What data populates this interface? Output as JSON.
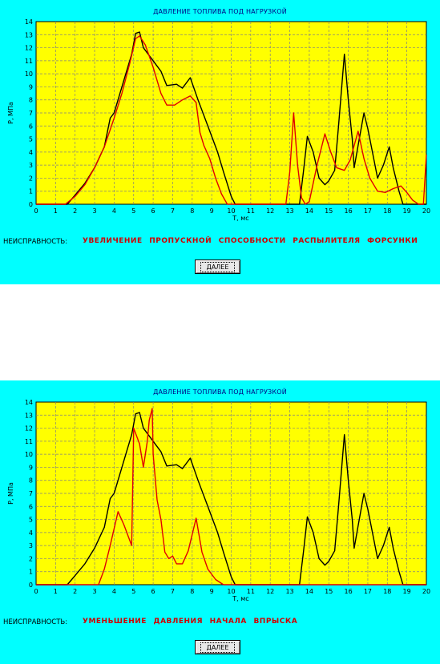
{
  "panels": [
    {
      "title": "ДАВЛЕНИЕ ТОПЛИВА ПОД НАГРУЗКОЙ",
      "fault_label": "НЕИСПРАВНОСТЬ:",
      "fault_value": "УВЕЛИЧЕНИЕ ПРОПУСКНОЙ СПОСОБНОСТИ РАСПЫЛИТЕЛЯ ФОРСУНКИ",
      "button_label": "ДАЛЕЕ"
    },
    {
      "title": "ДАВЛЕНИЕ ТОПЛИВА ПОД НАГРУЗКОЙ",
      "fault_label": "НЕИСПРАВНОСТЬ:",
      "fault_value": "УМЕНЬШЕНИЕ ДАВЛЕНИЯ НАЧАЛА ВПРЫСКА",
      "button_label": "ДАЛЕЕ"
    }
  ],
  "colors": {
    "background": "#00ffff",
    "plot": "#ffff00",
    "grid": "#808080",
    "reference": "#000000",
    "fault": "#e00000",
    "title": "#000080"
  },
  "chart_data": [
    {
      "type": "line",
      "ylabel": "P, МПа",
      "xlabel": "T, мс",
      "xlim": [
        0,
        20
      ],
      "ylim": [
        0,
        14
      ],
      "x_ticks": [
        0,
        1,
        2,
        3,
        4,
        5,
        6,
        7,
        8,
        9,
        10,
        11,
        12,
        13,
        14,
        15,
        16,
        17,
        18,
        19,
        20
      ],
      "y_ticks": [
        0,
        1,
        2,
        3,
        4,
        5,
        6,
        7,
        8,
        9,
        10,
        11,
        12,
        13,
        14
      ],
      "grid": true,
      "series": [
        {
          "color": "black",
          "points": [
            [
              0,
              0
            ],
            [
              1.6,
              0
            ],
            [
              2,
              0.7
            ],
            [
              2.5,
              1.6
            ],
            [
              3,
              2.8
            ],
            [
              3.5,
              4.4
            ],
            [
              3.8,
              6.6
            ],
            [
              4,
              7
            ],
            [
              4.3,
              8.5
            ],
            [
              4.6,
              10
            ],
            [
              4.9,
              11.5
            ],
            [
              5.1,
              13.1
            ],
            [
              5.3,
              13.2
            ],
            [
              5.5,
              12
            ],
            [
              6,
              11
            ],
            [
              6.4,
              10.2
            ],
            [
              6.7,
              9.1
            ],
            [
              7.2,
              9.2
            ],
            [
              7.5,
              8.9
            ],
            [
              7.9,
              9.7
            ],
            [
              8.3,
              8
            ],
            [
              8.8,
              6
            ],
            [
              9.3,
              4
            ],
            [
              9.6,
              2.5
            ],
            [
              10,
              0.6
            ],
            [
              10.2,
              0
            ],
            [
              13.5,
              0
            ],
            [
              13.7,
              2.5
            ],
            [
              13.9,
              5.2
            ],
            [
              14.2,
              4
            ],
            [
              14.5,
              2
            ],
            [
              14.8,
              1.5
            ],
            [
              15,
              1.8
            ],
            [
              15.3,
              2.6
            ],
            [
              15.5,
              6
            ],
            [
              15.8,
              11.5
            ],
            [
              16,
              8
            ],
            [
              16.2,
              5
            ],
            [
              16.3,
              2.8
            ],
            [
              16.5,
              4.5
            ],
            [
              16.8,
              7
            ],
            [
              17,
              5.8
            ],
            [
              17.3,
              3.5
            ],
            [
              17.5,
              2
            ],
            [
              17.8,
              3
            ],
            [
              18.1,
              4.4
            ],
            [
              18.3,
              2.8
            ],
            [
              18.6,
              1
            ],
            [
              18.8,
              0
            ],
            [
              20,
              0
            ]
          ]
        },
        {
          "color": "red",
          "points": [
            [
              0,
              0
            ],
            [
              1.5,
              0
            ],
            [
              2,
              0.6
            ],
            [
              2.5,
              1.5
            ],
            [
              3,
              2.8
            ],
            [
              3.5,
              4.4
            ],
            [
              4,
              6.6
            ],
            [
              4.4,
              8.5
            ],
            [
              4.8,
              10.8
            ],
            [
              5.1,
              12.7
            ],
            [
              5.3,
              12.9
            ],
            [
              5.6,
              12.2
            ],
            [
              6,
              10.5
            ],
            [
              6.4,
              8.5
            ],
            [
              6.7,
              7.6
            ],
            [
              7.1,
              7.6
            ],
            [
              7.5,
              8
            ],
            [
              7.9,
              8.3
            ],
            [
              8.2,
              7.8
            ],
            [
              8.4,
              5.5
            ],
            [
              8.6,
              4.5
            ],
            [
              8.9,
              3.5
            ],
            [
              9.2,
              2
            ],
            [
              9.5,
              0.8
            ],
            [
              9.8,
              0
            ],
            [
              12.8,
              0
            ],
            [
              13,
              2.5
            ],
            [
              13.2,
              7
            ],
            [
              13.4,
              3
            ],
            [
              13.6,
              0.5
            ],
            [
              13.8,
              0
            ],
            [
              14,
              0.2
            ],
            [
              14.4,
              3
            ],
            [
              14.8,
              5.4
            ],
            [
              15.1,
              4
            ],
            [
              15.4,
              2.8
            ],
            [
              15.8,
              2.6
            ],
            [
              16.1,
              3.4
            ],
            [
              16.5,
              5.6
            ],
            [
              16.8,
              3.5
            ],
            [
              17.1,
              2
            ],
            [
              17.5,
              1
            ],
            [
              17.9,
              0.9
            ],
            [
              18.3,
              1.2
            ],
            [
              18.7,
              1.4
            ],
            [
              19,
              0.9
            ],
            [
              19.3,
              0.3
            ],
            [
              19.6,
              0
            ],
            [
              19.85,
              0
            ],
            [
              20,
              3.8
            ]
          ]
        }
      ]
    },
    {
      "type": "line",
      "ylabel": "P, МПа",
      "xlabel": "T, мс",
      "xlim": [
        0,
        20
      ],
      "ylim": [
        0,
        14
      ],
      "x_ticks": [
        0,
        1,
        2,
        3,
        4,
        5,
        6,
        7,
        8,
        9,
        10,
        11,
        12,
        13,
        14,
        15,
        16,
        17,
        18,
        19,
        20
      ],
      "y_ticks": [
        0,
        1,
        2,
        3,
        4,
        5,
        6,
        7,
        8,
        9,
        10,
        11,
        12,
        13,
        14
      ],
      "grid": true,
      "series": [
        {
          "color": "black",
          "points": [
            [
              0,
              0
            ],
            [
              1.6,
              0
            ],
            [
              2,
              0.7
            ],
            [
              2.5,
              1.6
            ],
            [
              3,
              2.8
            ],
            [
              3.5,
              4.4
            ],
            [
              3.8,
              6.6
            ],
            [
              4,
              7
            ],
            [
              4.3,
              8.5
            ],
            [
              4.6,
              10
            ],
            [
              4.9,
              11.5
            ],
            [
              5.1,
              13.1
            ],
            [
              5.3,
              13.2
            ],
            [
              5.5,
              12
            ],
            [
              6,
              11
            ],
            [
              6.4,
              10.2
            ],
            [
              6.7,
              9.1
            ],
            [
              7.2,
              9.2
            ],
            [
              7.5,
              8.9
            ],
            [
              7.9,
              9.7
            ],
            [
              8.3,
              8
            ],
            [
              8.8,
              6
            ],
            [
              9.3,
              4
            ],
            [
              9.6,
              2.5
            ],
            [
              10,
              0.6
            ],
            [
              10.2,
              0
            ],
            [
              13.5,
              0
            ],
            [
              13.7,
              2.5
            ],
            [
              13.9,
              5.2
            ],
            [
              14.2,
              4
            ],
            [
              14.5,
              2
            ],
            [
              14.8,
              1.5
            ],
            [
              15,
              1.8
            ],
            [
              15.3,
              2.6
            ],
            [
              15.5,
              6
            ],
            [
              15.8,
              11.5
            ],
            [
              16,
              8
            ],
            [
              16.2,
              5
            ],
            [
              16.3,
              2.8
            ],
            [
              16.5,
              4.5
            ],
            [
              16.8,
              7
            ],
            [
              17,
              5.8
            ],
            [
              17.3,
              3.5
            ],
            [
              17.5,
              2
            ],
            [
              17.8,
              3
            ],
            [
              18.1,
              4.4
            ],
            [
              18.3,
              2.8
            ],
            [
              18.6,
              1
            ],
            [
              18.8,
              0
            ],
            [
              20,
              0
            ]
          ]
        },
        {
          "color": "red",
          "points": [
            [
              0,
              0
            ],
            [
              3.2,
              0
            ],
            [
              3.5,
              1.2
            ],
            [
              3.8,
              3
            ],
            [
              4.2,
              5.6
            ],
            [
              4.5,
              4.6
            ],
            [
              4.9,
              3
            ],
            [
              5,
              12
            ],
            [
              5.3,
              10.8
            ],
            [
              5.5,
              9
            ],
            [
              5.7,
              11
            ],
            [
              5.8,
              12.6
            ],
            [
              5.95,
              13.5
            ],
            [
              6,
              10
            ],
            [
              6.2,
              6.5
            ],
            [
              6.4,
              5
            ],
            [
              6.6,
              2.5
            ],
            [
              6.8,
              2
            ],
            [
              7,
              2.2
            ],
            [
              7.2,
              1.6
            ],
            [
              7.5,
              1.6
            ],
            [
              7.8,
              2.6
            ],
            [
              8.2,
              5.1
            ],
            [
              8.5,
              2.5
            ],
            [
              8.8,
              1.2
            ],
            [
              9.2,
              0.4
            ],
            [
              9.6,
              0
            ],
            [
              20,
              0
            ]
          ]
        }
      ]
    }
  ]
}
